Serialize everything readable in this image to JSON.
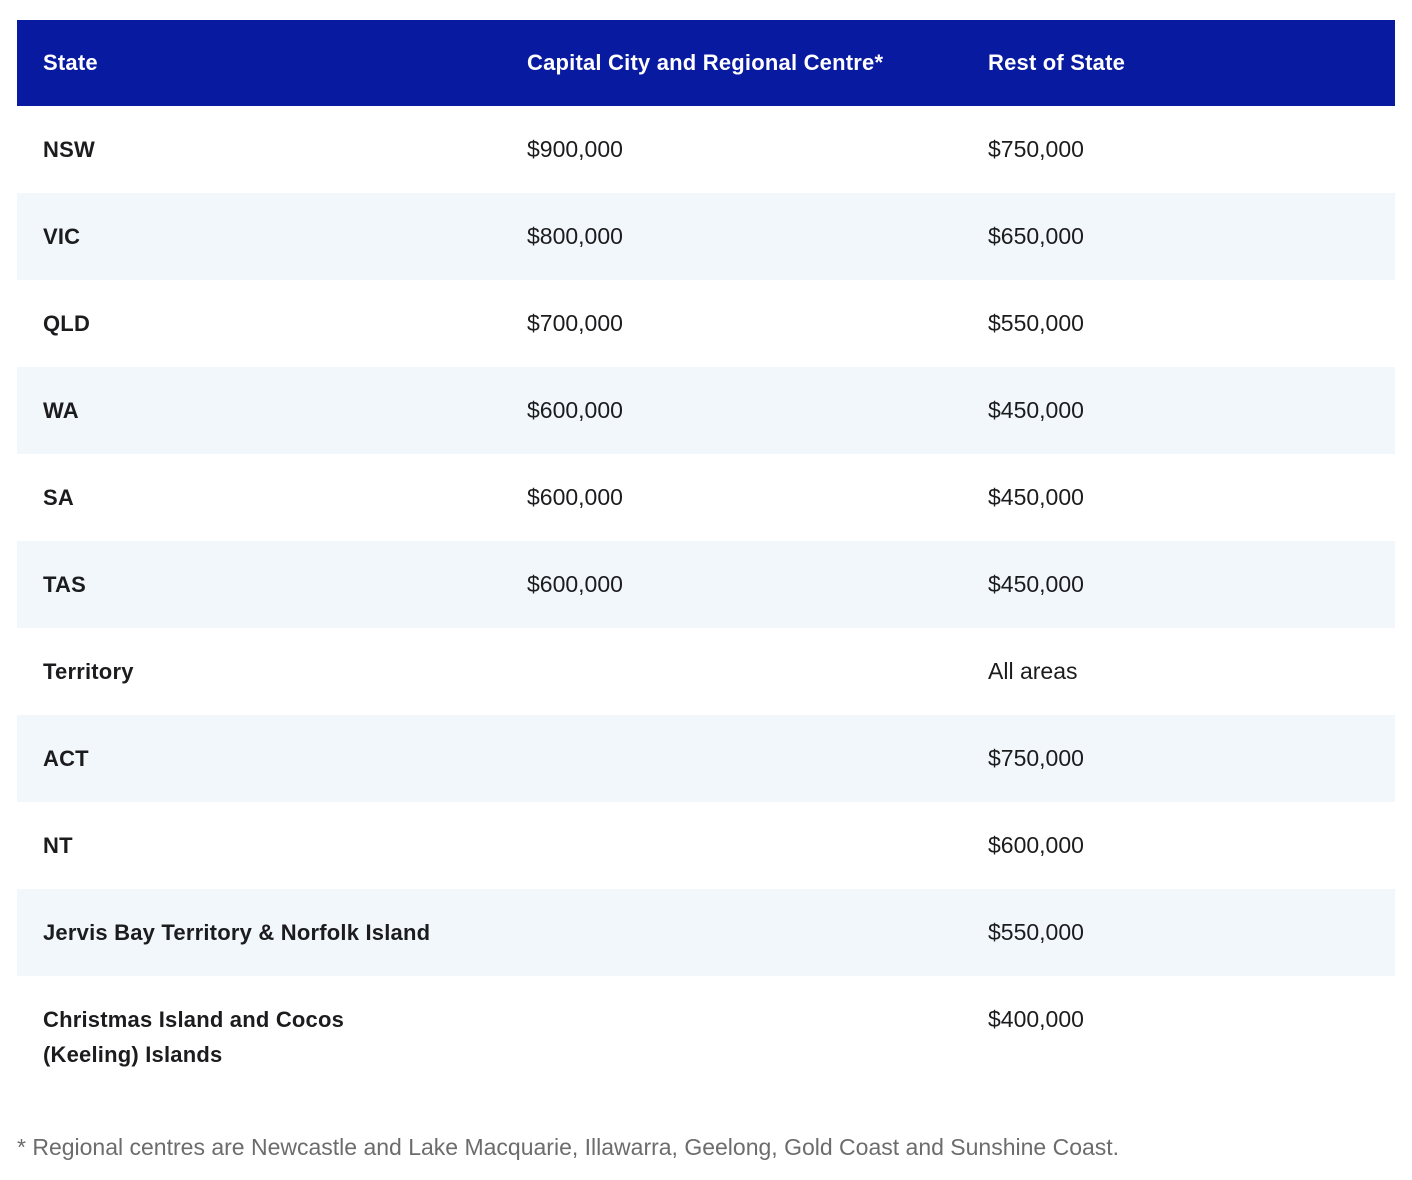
{
  "table": {
    "columns": [
      "State",
      "Capital City and Regional Centre*",
      "Rest of State"
    ],
    "rows": [
      {
        "state": "NSW",
        "capital": "$900,000",
        "rest": "$750,000"
      },
      {
        "state": "VIC",
        "capital": "$800,000",
        "rest": "$650,000"
      },
      {
        "state": "QLD",
        "capital": "$700,000",
        "rest": "$550,000"
      },
      {
        "state": "WA",
        "capital": "$600,000",
        "rest": "$450,000"
      },
      {
        "state": "SA",
        "capital": "$600,000",
        "rest": "$450,000"
      },
      {
        "state": "TAS",
        "capital": "$600,000",
        "rest": "$450,000"
      },
      {
        "state": "Territory",
        "capital": "",
        "rest": "All areas"
      },
      {
        "state": "ACT",
        "capital": "",
        "rest": "$750,000"
      },
      {
        "state": "NT",
        "capital": "",
        "rest": "$600,000"
      },
      {
        "state": "Jervis Bay Territory & Norfolk Island",
        "capital": "",
        "rest": "$550,000"
      },
      {
        "state": "Christmas Island and Cocos\n(Keeling) Islands",
        "capital": "",
        "rest": "$400,000"
      }
    ],
    "footnote": "* Regional centres are Newcastle and Lake Macquarie, Illawarra, Geelong, Gold Coast and Sunshine Coast."
  },
  "chart_data": {
    "type": "table",
    "columns": [
      "State",
      "Capital City and Regional Centre*",
      "Rest of State"
    ],
    "rows": [
      [
        "NSW",
        "$900,000",
        "$750,000"
      ],
      [
        "VIC",
        "$800,000",
        "$650,000"
      ],
      [
        "QLD",
        "$700,000",
        "$550,000"
      ],
      [
        "WA",
        "$600,000",
        "$450,000"
      ],
      [
        "SA",
        "$600,000",
        "$450,000"
      ],
      [
        "TAS",
        "$600,000",
        "$450,000"
      ],
      [
        "Territory",
        "",
        "All areas"
      ],
      [
        "ACT",
        "",
        "$750,000"
      ],
      [
        "NT",
        "",
        "$600,000"
      ],
      [
        "Jervis Bay Territory & Norfolk Island",
        "",
        "$550,000"
      ],
      [
        "Christmas Island and Cocos (Keeling) Islands",
        "",
        "$400,000"
      ]
    ],
    "footnote": "* Regional centres are Newcastle and Lake Macquarie, Illawarra, Geelong, Gold Coast and Sunshine Coast.",
    "layout_hints": {
      "header_style": "dark-blue",
      "zebra_striping": true,
      "grid": false
    }
  },
  "colors": {
    "header_bg": "#081a9f",
    "header_text": "#ffffff",
    "row_alt_bg": "#f2f7fb",
    "row_bg": "#ffffff",
    "text": "#1c1c1e",
    "footnote_text": "#6c6c6c",
    "page_bg": "#ffffff"
  }
}
